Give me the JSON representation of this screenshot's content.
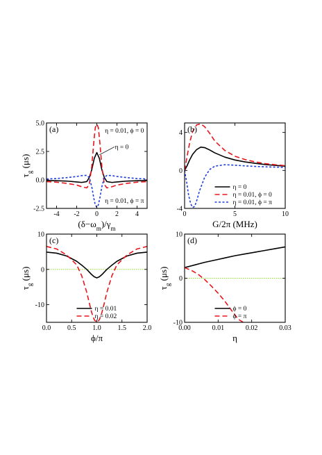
{
  "chart_data": [
    {
      "type": "line",
      "panel_label": "(a)",
      "xlabel": "(δ−ω_m)/γ_m",
      "ylabel": "τ_g (μs)",
      "xlim": [
        -5,
        5
      ],
      "ylim": [
        -2.5,
        5.0
      ],
      "xticks": [
        -4,
        -2,
        0,
        2,
        4
      ],
      "xtick_labels": [
        "-4",
        "-2",
        "0",
        "2",
        "4"
      ],
      "yticks": [
        -2.5,
        0.0,
        2.5,
        5.0
      ],
      "ytick_labels": [
        "-2.5",
        "0.0",
        "2.5",
        "5.0"
      ],
      "legend": "none",
      "annotations": [
        {
          "text": "η = 0.01, ϕ = 0",
          "color": "#e8141c"
        },
        {
          "text": "η = 0",
          "color": "#000000"
        },
        {
          "text": "η = 0.01, ϕ = π",
          "color": "#1e3de0"
        }
      ],
      "series": [
        {
          "style": "solid",
          "color": "#000000",
          "x": [
            -5,
            -4,
            -3,
            -2,
            -1.5,
            -1,
            -0.75,
            -0.5,
            -0.25,
            0,
            0.25,
            0.5,
            0.75,
            1,
            1.5,
            2,
            3,
            4,
            5
          ],
          "y": [
            -0.05,
            -0.07,
            -0.1,
            -0.18,
            -0.22,
            -0.15,
            0.2,
            0.9,
            1.9,
            2.4,
            1.9,
            0.9,
            0.2,
            -0.15,
            -0.22,
            -0.18,
            -0.1,
            -0.07,
            -0.05
          ]
        },
        {
          "style": "dashed",
          "color": "#e8141c",
          "x": [
            -5,
            -4,
            -3,
            -2,
            -1.5,
            -1,
            -0.75,
            -0.5,
            -0.3,
            -0.15,
            0,
            0.15,
            0.3,
            0.5,
            0.75,
            1,
            1.5,
            2,
            3,
            4,
            5
          ],
          "y": [
            -0.15,
            -0.2,
            -0.3,
            -0.45,
            -0.6,
            -0.7,
            -0.4,
            1.2,
            3.3,
            4.6,
            4.9,
            4.6,
            3.3,
            1.2,
            -0.4,
            -0.7,
            -0.6,
            -0.45,
            -0.3,
            -0.2,
            -0.15
          ]
        },
        {
          "style": "dotted",
          "color": "#1e3de0",
          "x": [
            -5,
            -4,
            -3,
            -2,
            -1.5,
            -1,
            -0.75,
            -0.5,
            -0.3,
            -0.15,
            0,
            0.15,
            0.3,
            0.5,
            0.75,
            1,
            1.5,
            2,
            3,
            4,
            5
          ],
          "y": [
            0.08,
            0.12,
            0.2,
            0.3,
            0.38,
            0.4,
            0.2,
            -0.6,
            -1.6,
            -2.2,
            -2.4,
            -2.2,
            -1.6,
            -0.6,
            0.2,
            0.4,
            0.38,
            0.3,
            0.2,
            0.12,
            0.08
          ]
        }
      ]
    },
    {
      "type": "line",
      "panel_label": "(b)",
      "xlabel": "G/2π (MHz)",
      "ylabel": "",
      "xlim": [
        0,
        10
      ],
      "ylim": [
        -4,
        5
      ],
      "xticks": [
        0,
        5,
        10
      ],
      "xtick_labels": [
        "0",
        "5",
        "10"
      ],
      "yticks": [
        -4,
        0,
        4
      ],
      "ytick_labels": [
        "-4",
        "0",
        "4"
      ],
      "legend": "bottom-right",
      "series": [
        {
          "name": "η = 0",
          "style": "solid",
          "color": "#000000",
          "x": [
            0,
            0.25,
            0.5,
            0.8,
            1.2,
            1.6,
            2,
            2.5,
            3,
            4,
            5,
            6,
            7,
            8,
            9,
            10
          ],
          "y": [
            0,
            0.5,
            1.1,
            1.7,
            2.2,
            2.45,
            2.4,
            2.15,
            1.85,
            1.4,
            1.1,
            0.9,
            0.75,
            0.62,
            0.53,
            0.45
          ]
        },
        {
          "name": "η = 0.01, ϕ = 0",
          "style": "dashed",
          "color": "#e8141c",
          "x": [
            0,
            0.25,
            0.5,
            0.8,
            1.2,
            1.6,
            2,
            2.5,
            3,
            4,
            5,
            6,
            7,
            8,
            9,
            10
          ],
          "y": [
            0,
            1.5,
            2.9,
            4.1,
            4.8,
            4.9,
            4.6,
            3.9,
            3.1,
            2.1,
            1.5,
            1.15,
            0.9,
            0.72,
            0.6,
            0.5
          ]
        },
        {
          "name": "η = 0.01, ϕ = π",
          "style": "dotted",
          "color": "#1e3de0",
          "x": [
            0,
            0.2,
            0.4,
            0.6,
            0.8,
            1.0,
            1.2,
            1.5,
            2,
            2.5,
            3,
            4,
            5,
            6,
            7,
            8,
            9,
            10
          ],
          "y": [
            0,
            -1.2,
            -2.6,
            -3.5,
            -3.9,
            -3.8,
            -3.2,
            -2.1,
            -0.7,
            0.1,
            0.45,
            0.6,
            0.55,
            0.48,
            0.42,
            0.38,
            0.35,
            0.32
          ]
        }
      ]
    },
    {
      "type": "line",
      "panel_label": "(c)",
      "xlabel": "ϕ/π",
      "ylabel": "τ_g (μs)",
      "xlim": [
        0.0,
        2.0
      ],
      "ylim": [
        -15,
        10
      ],
      "xticks": [
        0.0,
        0.5,
        1.0,
        1.5,
        2.0
      ],
      "xtick_labels": [
        "0.0",
        "0.5",
        "1.0",
        "1.5",
        "2.0"
      ],
      "yticks": [
        -10,
        0,
        10
      ],
      "ytick_labels": [
        "-10",
        "0",
        "10"
      ],
      "reference_line_y": 0,
      "reference_line_color": "#8fdc2a",
      "legend": "bottom-right",
      "series": [
        {
          "name": "η = 0.01",
          "style": "solid",
          "color": "#000000",
          "x": [
            0,
            0.2,
            0.4,
            0.6,
            0.7,
            0.8,
            0.9,
            0.95,
            1.0,
            1.05,
            1.1,
            1.2,
            1.3,
            1.4,
            1.6,
            1.8,
            2.0
          ],
          "y": [
            4.9,
            4.6,
            3.8,
            2.3,
            1.2,
            0.0,
            -1.5,
            -2.1,
            -2.4,
            -2.1,
            -1.5,
            0.0,
            1.2,
            2.3,
            3.8,
            4.6,
            4.9
          ]
        },
        {
          "name": "η = 0.02",
          "style": "dashed",
          "color": "#e8141c",
          "x": [
            0,
            0.2,
            0.4,
            0.6,
            0.7,
            0.8,
            0.85,
            0.9,
            0.95,
            1.0,
            1.05,
            1.1,
            1.15,
            1.2,
            1.3,
            1.4,
            1.6,
            1.8,
            2.0
          ],
          "y": [
            6.5,
            5.8,
            4.1,
            1.3,
            -1.8,
            -6.5,
            -9.5,
            -12.3,
            -14.3,
            -15.0,
            -14.3,
            -12.3,
            -9.5,
            -6.5,
            -1.8,
            1.3,
            4.1,
            5.8,
            6.5
          ]
        }
      ]
    },
    {
      "type": "line",
      "panel_label": "(d)",
      "xlabel": "η",
      "ylabel": "τ_g (μs)",
      "xlim": [
        0.0,
        0.03
      ],
      "ylim": [
        -10,
        10
      ],
      "xticks": [
        0.0,
        0.01,
        0.02,
        0.03
      ],
      "xtick_labels": [
        "0.00",
        "0.01",
        "0.02",
        "0.03"
      ],
      "yticks": [
        -10,
        0,
        10
      ],
      "ytick_labels": [
        "-10",
        "0",
        "10"
      ],
      "reference_line_y": 0,
      "reference_line_color": "#8fdc2a",
      "legend": "bottom-right",
      "series": [
        {
          "name": "ϕ = 0",
          "style": "solid",
          "color": "#000000",
          "x": [
            0,
            0.003,
            0.006,
            0.009,
            0.012,
            0.015,
            0.018,
            0.021,
            0.024,
            0.027,
            0.03
          ],
          "y": [
            2.4,
            3.0,
            3.6,
            4.1,
            4.6,
            5.1,
            5.5,
            5.9,
            6.3,
            6.7,
            7.1
          ]
        },
        {
          "name": "ϕ = π",
          "style": "dashed",
          "color": "#e8141c",
          "x": [
            0,
            0.002,
            0.004,
            0.006,
            0.008,
            0.01,
            0.012,
            0.014,
            0.016,
            0.0175
          ],
          "y": [
            2.4,
            1.8,
            0.9,
            -0.3,
            -1.8,
            -3.4,
            -5.2,
            -7.3,
            -9.3,
            -10.0
          ]
        }
      ]
    }
  ]
}
